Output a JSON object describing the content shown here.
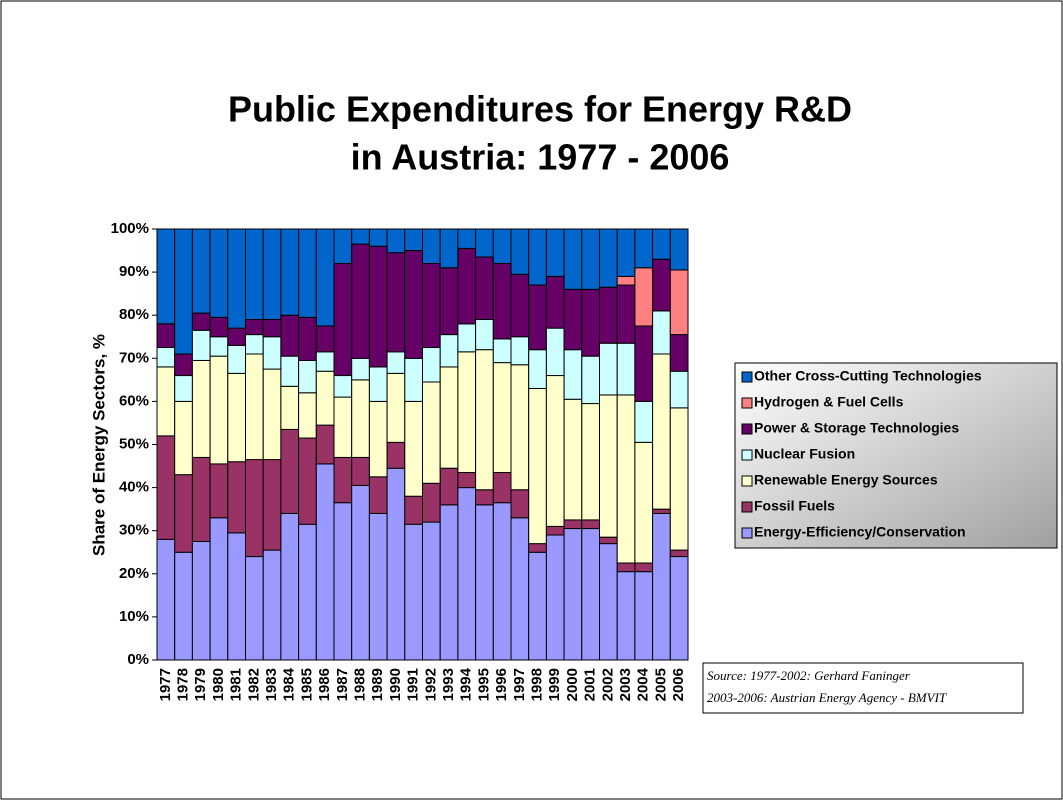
{
  "chart_data": {
    "type": "stacked_bar",
    "title": "Public Expenditures for Energy R&D",
    "subtitle": "in Austria: 1977 - 2006",
    "y_label": "Share of Energy Sectors, %",
    "source": [
      "Source: 1977-2002: Gerhard Faninger",
      "2003-2006: Austrian Energy Agency - BMVIT"
    ],
    "categories": [
      "1977",
      "1978",
      "1979",
      "1980",
      "1981",
      "1982",
      "1983",
      "1984",
      "1985",
      "1986",
      "1987",
      "1988",
      "1989",
      "1990",
      "1991",
      "1992",
      "1993",
      "1994",
      "1995",
      "1996",
      "1997",
      "1998",
      "1999",
      "2000",
      "2001",
      "2002",
      "2003",
      "2004",
      "2005",
      "2006"
    ],
    "series": [
      {
        "name": "Energy-Efficiency/Conservation",
        "color": "#9999ff",
        "values": [
          28,
          25,
          27.5,
          33,
          29.5,
          24,
          25.5,
          34,
          31.5,
          45.5,
          36.5,
          40.5,
          34,
          44.5,
          31.5,
          32,
          36,
          40,
          36,
          36.5,
          33,
          25,
          29,
          30.5,
          30.5,
          27,
          20.5,
          20.5,
          34,
          24
        ]
      },
      {
        "name": "Fossil Fuels",
        "color": "#993366",
        "values": [
          24,
          18,
          19.5,
          12.5,
          16.5,
          22.5,
          21,
          19.5,
          20,
          9,
          10.5,
          6.5,
          8.5,
          6,
          6.5,
          9,
          8.5,
          3.5,
          3.5,
          7,
          6.5,
          2,
          2,
          2,
          2,
          1.5,
          2,
          2,
          1,
          1.5
        ]
      },
      {
        "name": "Renewable Energy Sources",
        "color": "#ffffcc",
        "values": [
          16,
          17,
          22.5,
          25,
          20.5,
          24.5,
          21,
          10,
          10.5,
          12.5,
          14,
          18,
          17.5,
          16,
          22,
          23.5,
          23.5,
          28,
          32.5,
          25.5,
          29,
          36,
          35,
          28,
          27,
          33,
          39,
          28,
          36,
          33
        ]
      },
      {
        "name": "Nuclear Fusion",
        "color": "#ccffff",
        "values": [
          4.5,
          6,
          7,
          4.5,
          6.5,
          4.5,
          7.5,
          7,
          7.5,
          4.5,
          5,
          5,
          8,
          5,
          10,
          8,
          7.5,
          6.5,
          7,
          5.5,
          6.5,
          9,
          11,
          11.5,
          11,
          12,
          12,
          9.5,
          10,
          8.5
        ]
      },
      {
        "name": "Power & Storage Technologies",
        "color": "#660066",
        "values": [
          5.5,
          5,
          4,
          4.5,
          4,
          3.5,
          4,
          9.5,
          10,
          6,
          26,
          26.5,
          28,
          23,
          25,
          19.5,
          15.5,
          17.5,
          14.5,
          17.5,
          14.5,
          15,
          12,
          14,
          15.5,
          13,
          13.5,
          17.5,
          12,
          8.5
        ]
      },
      {
        "name": "Hydrogen & Fuel Cells",
        "color": "#ff8080",
        "values": [
          0,
          0,
          0,
          0,
          0,
          0,
          0,
          0,
          0,
          0,
          0,
          0,
          0,
          0,
          0,
          0,
          0,
          0,
          0,
          0,
          0,
          0,
          0,
          0,
          0,
          0,
          2,
          13.5,
          0,
          15
        ]
      },
      {
        "name": "Other Cross-Cutting Technologies",
        "color": "#0066cc",
        "values": [
          22,
          29,
          19.5,
          20.5,
          23,
          21,
          21,
          20,
          20.5,
          22.5,
          8,
          3.5,
          4,
          5.5,
          5,
          8,
          9,
          4.5,
          6.5,
          8,
          10.5,
          13,
          11,
          14,
          14,
          13.5,
          11,
          9,
          7,
          9.5
        ]
      }
    ],
    "ylim": [
      0,
      100
    ],
    "yticks": [
      {
        "value": 0,
        "label": "0%"
      },
      {
        "value": 10,
        "label": "10%"
      },
      {
        "value": 20,
        "label": "20%"
      },
      {
        "value": 30,
        "label": "30%"
      },
      {
        "value": 40,
        "label": "40%"
      },
      {
        "value": 50,
        "label": "50%"
      },
      {
        "value": 60,
        "label": "60%"
      },
      {
        "value": 70,
        "label": "70%"
      },
      {
        "value": 80,
        "label": "80%"
      },
      {
        "value": 90,
        "label": "90%"
      },
      {
        "value": 100,
        "label": "100%"
      }
    ],
    "legend": "right"
  }
}
